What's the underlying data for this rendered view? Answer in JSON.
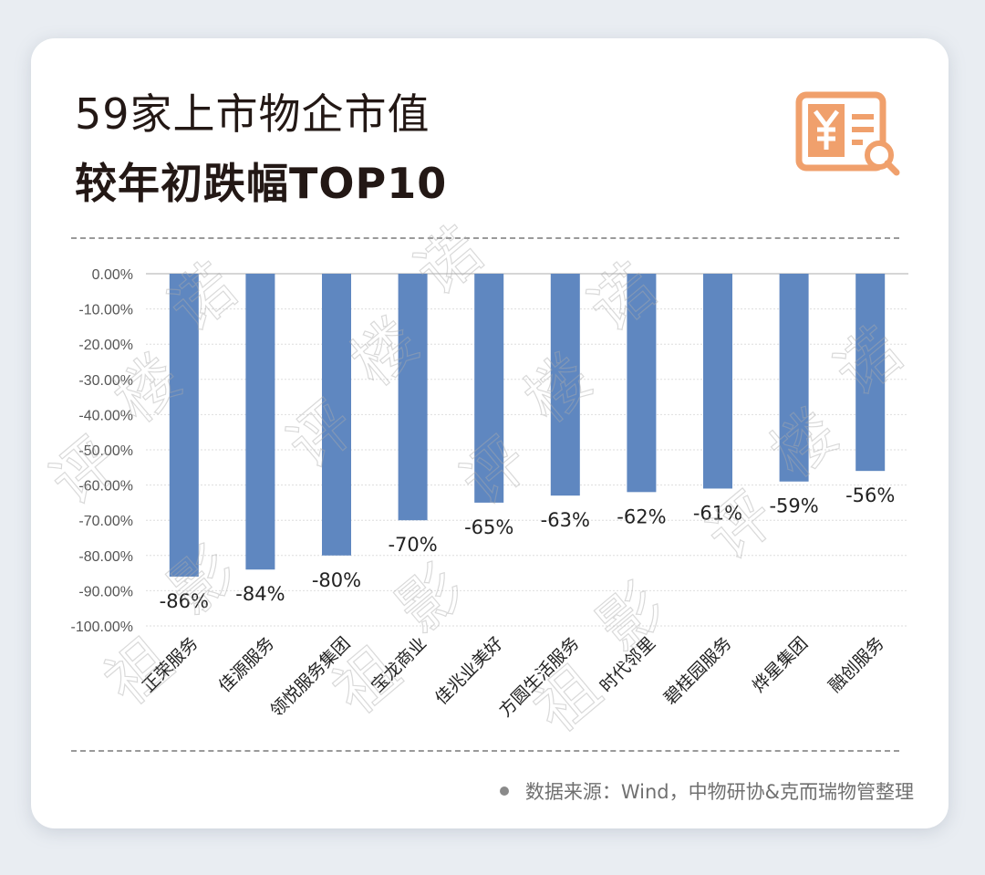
{
  "header": {
    "title_line1": "59家上市物企市值",
    "title_line2": "较年初跌幅TOP10"
  },
  "footer": {
    "source": "数据来源：Wind，中物研协&克而瑞物管整理"
  },
  "colors": {
    "bar": "#5f87c0",
    "logo": "#f0a06c",
    "title": "#231815"
  },
  "icons": {
    "logo": "invoice-search-icon"
  },
  "chart_data": {
    "type": "bar",
    "categories": [
      "正荣服务",
      "佳源服务",
      "领悦服务集团",
      "宝龙商业",
      "佳兆业美好",
      "方圆生活服务",
      "时代邻里",
      "碧桂园服务",
      "烨星集团",
      "融创服务"
    ],
    "values": [
      -86,
      -84,
      -80,
      -70,
      -65,
      -63,
      -62,
      -61,
      -59,
      -56
    ],
    "data_labels": [
      "-86%",
      "-84%",
      "-80%",
      "-70%",
      "-65%",
      "-63%",
      "-62%",
      "-61%",
      "-59%",
      "-56%"
    ],
    "y_ticks": [
      "0.00%",
      "-10.00%",
      "-20.00%",
      "-30.00%",
      "-40.00%",
      "-50.00%",
      "-60.00%",
      "-70.00%",
      "-80.00%",
      "-90.00%",
      "-100.00%"
    ],
    "ylim": [
      -100,
      0
    ],
    "grid": true,
    "legend": "none"
  }
}
